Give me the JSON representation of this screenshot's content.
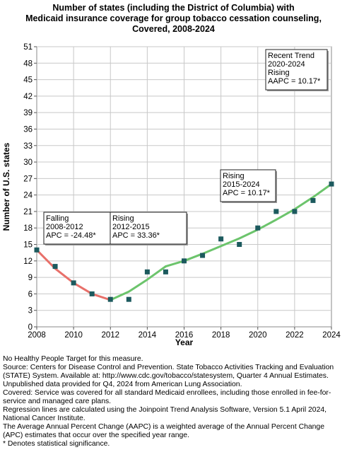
{
  "chart_data": {
    "type": "line",
    "title_lines": [
      "Number of states (including the District of Columbia) with",
      "Medicaid insurance coverage for group tobacco cessation counseling,",
      "Covered,  2008-2024"
    ],
    "xlabel": "Year",
    "ylabel": "Number of U.S. states",
    "xlim": [
      2008,
      2024
    ],
    "ylim": [
      0,
      51
    ],
    "x_ticks": [
      2008,
      2010,
      2012,
      2014,
      2016,
      2018,
      2020,
      2022,
      2024
    ],
    "y_ticks": [
      0,
      3,
      6,
      9,
      12,
      15,
      18,
      21,
      24,
      27,
      30,
      33,
      36,
      39,
      42,
      45,
      48,
      51
    ],
    "grid": true,
    "observed": {
      "x": [
        2008,
        2009,
        2010,
        2011,
        2012,
        2013,
        2014,
        2015,
        2016,
        2017,
        2018,
        2019,
        2020,
        2021,
        2022,
        2023,
        2024
      ],
      "y": [
        14,
        11,
        8,
        6,
        5,
        5,
        10,
        10,
        12,
        13,
        16,
        15,
        18,
        21,
        21,
        23,
        26
      ]
    },
    "series": [
      {
        "x": [
          2008,
          2009,
          2010,
          2011,
          2012
        ],
        "y": [
          14,
          10.6,
          8.0,
          6.0,
          4.9
        ],
        "color": "#e8706a"
      },
      {
        "x": [
          2012,
          2013,
          2014,
          2015
        ],
        "y": [
          4.9,
          6.4,
          8.6,
          11.0
        ],
        "color": "#6cc46c"
      },
      {
        "x": [
          2015,
          2016,
          2017,
          2018,
          2019,
          2020,
          2021,
          2022,
          2023,
          2024
        ],
        "y": [
          11.0,
          12.0,
          13.3,
          14.7,
          16.1,
          17.7,
          19.5,
          21.4,
          23.6,
          26.0
        ],
        "color": "#6cc46c"
      }
    ],
    "annotations": [
      {
        "lines": [
          "Falling",
          "2008-2012",
          "APC = -24.48*"
        ]
      },
      {
        "lines": [
          "Rising",
          "2012-2015",
          "APC = 33.36*"
        ]
      },
      {
        "lines": [
          "Rising",
          "2015-2024",
          "APC = 10.17*"
        ]
      },
      {
        "lines": [
          "Recent Trend",
          "2020-2024",
          "Rising",
          "AAPC = 10.17*"
        ]
      }
    ],
    "colors": {
      "marker": "#1c5a5e",
      "falling": "#e8706a",
      "rising": "#6cc46c",
      "grid": "#c8c8c8"
    }
  },
  "footnotes": [
    "No Healthy People Target for this measure.",
    "Source: Centers for Disease Control and Prevention. State Tobacco Activities Tracking and Evaluation (STATE) System. Available at: http://www.cdc.gov/tobacco/statesystem, Quarter 4 Annual Estimates.",
    "Unpublished data provided for Q4, 2024 from American Lung Association.",
    "Covered: Service was covered for all standard Medicaid enrollees, including those enrolled in fee-for-service and managed care plans.",
    "Regression lines are calculated using the Joinpoint Trend Analysis Software, Version 5.1 April 2024, National Cancer Institute.",
    "The Average Annual Percent Change (AAPC) is a weighted average of the Annual Percent Change (APC) estimates that occur over the specified year range.",
    "* Denotes statistical significance."
  ]
}
